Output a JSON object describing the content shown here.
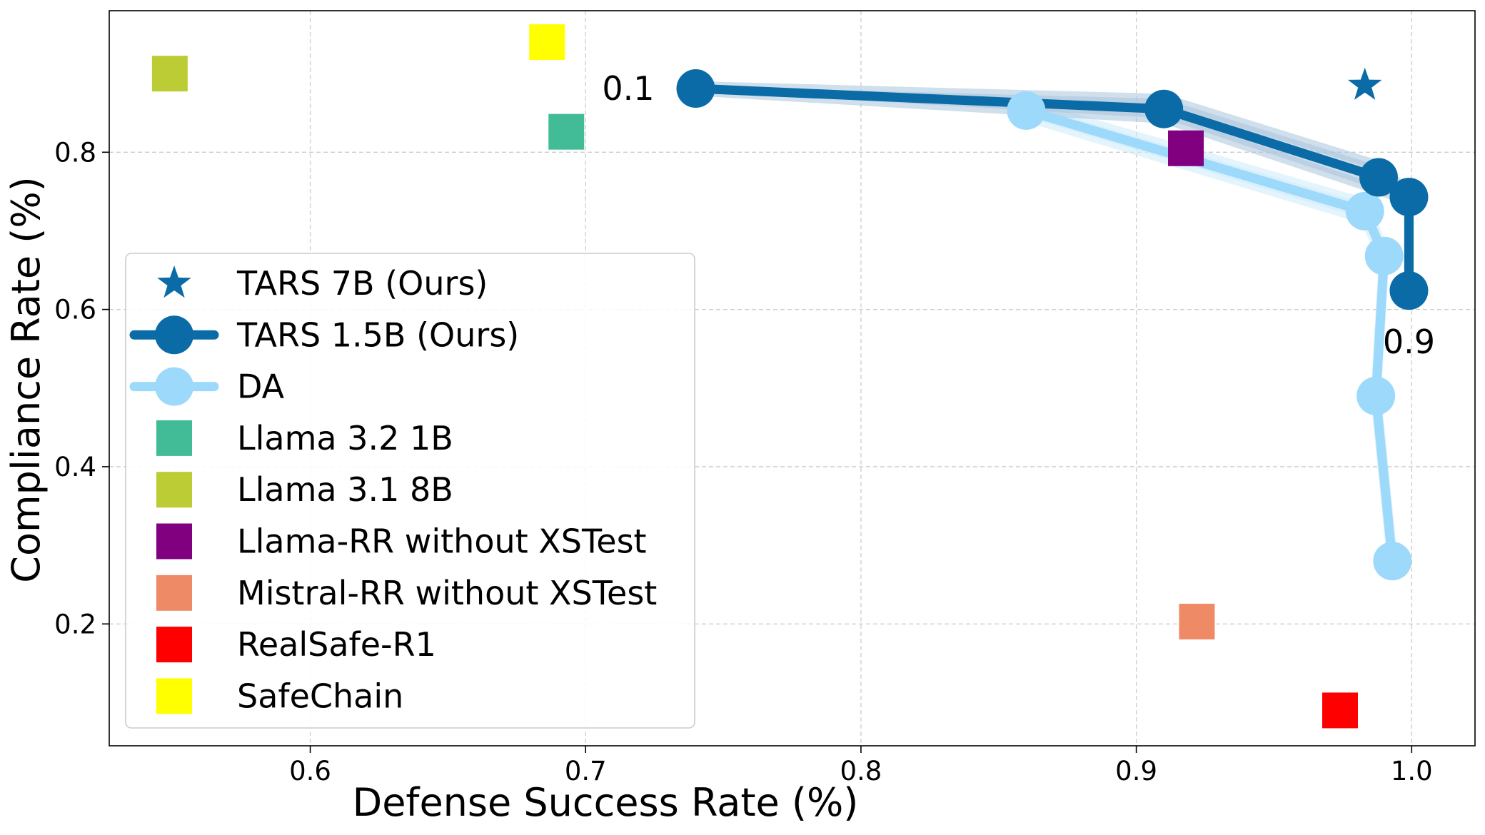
{
  "chart_data": {
    "type": "scatter",
    "title": "",
    "xlabel": "Defense Success Rate (%)",
    "ylabel": "Compliance Rate (%)",
    "xlim": [
      0.527,
      1.023
    ],
    "ylim": [
      0.045,
      0.98
    ],
    "xticks": [
      0.6,
      0.7,
      0.8,
      0.9,
      1.0
    ],
    "xtick_labels": [
      "0.6",
      "0.7",
      "0.8",
      "0.9",
      "1.0"
    ],
    "yticks": [
      0.2,
      0.4,
      0.6,
      0.8
    ],
    "ytick_labels": [
      "0.2",
      "0.4",
      "0.6",
      "0.8"
    ],
    "grid": true,
    "legend_position": "center-left",
    "series": [
      {
        "name": "TARS 7B (Ours)",
        "kind": "star",
        "color": "#0b6ba6",
        "points": [
          [
            0.983,
            0.885
          ]
        ]
      },
      {
        "name": "TARS 1.5B (Ours)",
        "kind": "line",
        "color": "#0b6ba6",
        "band_color": "#a9c4dd",
        "points": [
          [
            0.74,
            0.881
          ],
          [
            0.91,
            0.855
          ],
          [
            0.988,
            0.768
          ],
          [
            0.999,
            0.743
          ],
          [
            0.999,
            0.624
          ]
        ],
        "lower": [
          0.878,
          0.843,
          0.752,
          0.738,
          0.62
        ],
        "upper": [
          0.884,
          0.868,
          0.783,
          0.748,
          0.628
        ]
      },
      {
        "name": "DA",
        "kind": "line",
        "color": "#9dd9fa",
        "band_color": "#cdebfb",
        "points": [
          [
            0.86,
            0.853
          ],
          [
            0.983,
            0.725
          ],
          [
            0.99,
            0.668
          ],
          [
            0.987,
            0.49
          ],
          [
            0.993,
            0.28
          ]
        ],
        "lower": [
          0.845,
          0.715,
          0.662,
          0.484,
          0.274
        ],
        "upper": [
          0.861,
          0.735,
          0.674,
          0.496,
          0.286
        ]
      },
      {
        "name": "Llama 3.2 1B",
        "kind": "square",
        "color": "#41bc97",
        "points": [
          [
            0.693,
            0.826
          ]
        ]
      },
      {
        "name": "Llama 3.1 8B",
        "kind": "square",
        "color": "#bccc35",
        "points": [
          [
            0.549,
            0.9
          ]
        ]
      },
      {
        "name": "Llama-RR without XSTest",
        "kind": "square",
        "color": "#800080",
        "points": [
          [
            0.918,
            0.805
          ]
        ]
      },
      {
        "name": "Mistral-RR without XSTest",
        "kind": "square",
        "color": "#ef8a67",
        "points": [
          [
            0.922,
            0.203
          ]
        ]
      },
      {
        "name": "RealSafe-R1",
        "kind": "square",
        "color": "#ff0000",
        "points": [
          [
            0.974,
            0.09
          ]
        ]
      },
      {
        "name": "SafeChain",
        "kind": "square",
        "color": "#ffff00",
        "points": [
          [
            0.686,
            0.94
          ]
        ]
      }
    ],
    "annotations": [
      {
        "text": "0.1",
        "x": 0.74,
        "y": 0.881
      },
      {
        "text": "0.9",
        "x": 0.999,
        "y": 0.624
      }
    ]
  }
}
